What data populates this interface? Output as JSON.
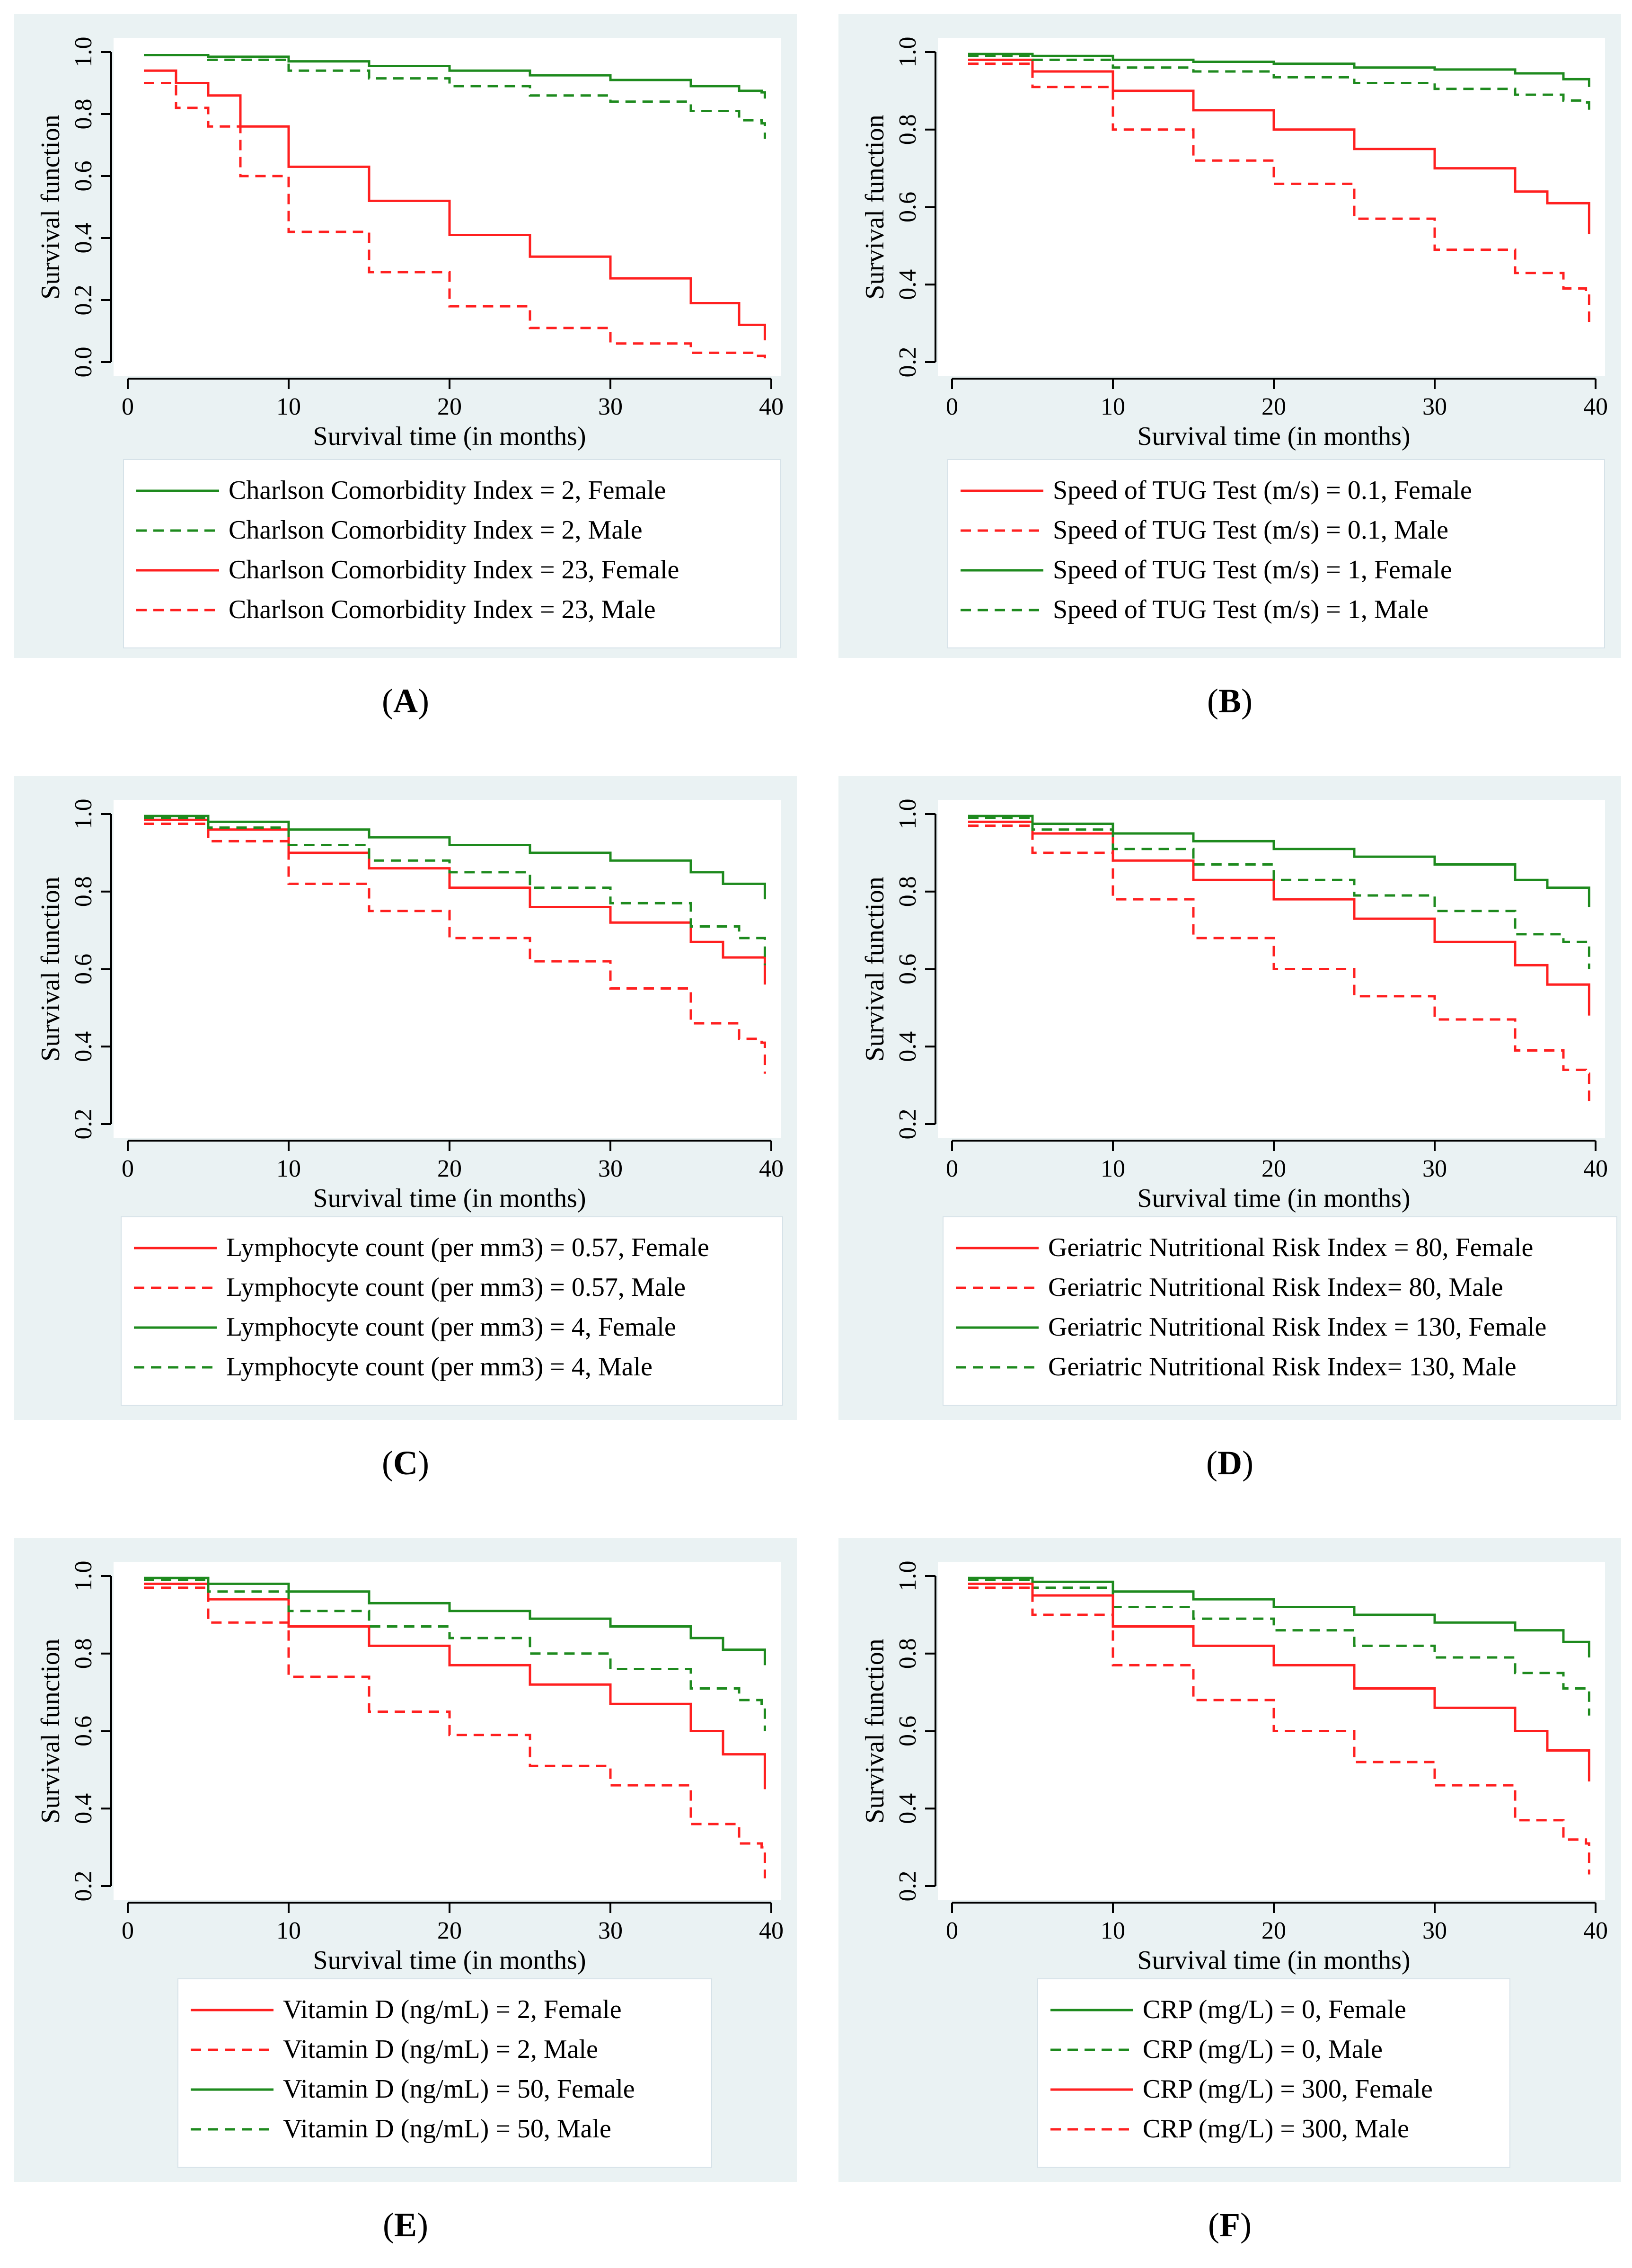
{
  "colors": {
    "panel_bg": "#eaf2f3",
    "green": "#1e8a1e",
    "red": "#ff2020",
    "axis": "#000000"
  },
  "chart_data": [
    {
      "id": "A",
      "type": "line",
      "panel_label": "A",
      "xlabel": "Survival time (in months)",
      "ylabel": "Survival function",
      "xlim": [
        0,
        40
      ],
      "ylim": [
        0.0,
        1.0
      ],
      "xticks": [
        "0",
        "10",
        "20",
        "30",
        "40"
      ],
      "yticks": [
        {
          "v": 0.0,
          "l": "0.0"
        },
        {
          "v": 0.2,
          "l": "0.2"
        },
        {
          "v": 0.4,
          "l": "0.4"
        },
        {
          "v": 0.6,
          "l": "0.6"
        },
        {
          "v": 0.8,
          "l": "0.8"
        },
        {
          "v": 1.0,
          "l": "1.0"
        }
      ],
      "series": [
        {
          "name": "Charlson Comorbidity Index = 2, Female",
          "color": "green",
          "dash": false,
          "x": [
            1,
            5,
            10,
            15,
            20,
            25,
            30,
            35,
            38,
            39.4,
            39.6
          ],
          "y": [
            0.99,
            0.985,
            0.97,
            0.955,
            0.94,
            0.925,
            0.91,
            0.89,
            0.875,
            0.87,
            0.85
          ]
        },
        {
          "name": "Charlson Comorbidity Index = 2, Male",
          "color": "green",
          "dash": true,
          "x": [
            1,
            5,
            10,
            15,
            20,
            25,
            30,
            35,
            38,
            39.4,
            39.6
          ],
          "y": [
            0.99,
            0.975,
            0.94,
            0.915,
            0.89,
            0.86,
            0.84,
            0.81,
            0.78,
            0.77,
            0.72
          ]
        },
        {
          "name": "Charlson Comorbidity Index = 23, Female",
          "color": "red",
          "dash": false,
          "x": [
            1,
            3,
            5,
            7,
            10,
            15,
            20,
            25,
            30,
            35,
            38,
            39.4,
            39.6
          ],
          "y": [
            0.94,
            0.9,
            0.86,
            0.76,
            0.63,
            0.52,
            0.41,
            0.34,
            0.27,
            0.19,
            0.12,
            0.12,
            0.07
          ]
        },
        {
          "name": "Charlson Comorbidity Index = 23, Male",
          "color": "red",
          "dash": true,
          "x": [
            1,
            3,
            5,
            7,
            10,
            15,
            20,
            25,
            30,
            35,
            39,
            39.6
          ],
          "y": [
            0.9,
            0.82,
            0.76,
            0.6,
            0.42,
            0.29,
            0.18,
            0.11,
            0.06,
            0.03,
            0.02,
            0.01
          ]
        }
      ]
    },
    {
      "id": "B",
      "type": "line",
      "panel_label": "B",
      "xlabel": "Survival time (in months)",
      "ylabel": "Survival function",
      "xlim": [
        0,
        40
      ],
      "ylim": [
        0.2,
        1.0
      ],
      "xticks": [
        "0",
        "10",
        "20",
        "30",
        "40"
      ],
      "yticks": [
        {
          "v": 0.2,
          "l": "0.2"
        },
        {
          "v": 0.4,
          "l": "0.4"
        },
        {
          "v": 0.6,
          "l": "0.6"
        },
        {
          "v": 0.8,
          "l": "0.8"
        },
        {
          "v": 1.0,
          "l": "1.0"
        }
      ],
      "series": [
        {
          "name": "Speed of TUG Test (m/s) = 0.1, Female",
          "color": "red",
          "dash": false,
          "x": [
            1,
            5,
            10,
            15,
            20,
            25,
            30,
            35,
            37,
            39.4,
            39.6
          ],
          "y": [
            0.98,
            0.95,
            0.9,
            0.85,
            0.8,
            0.75,
            0.7,
            0.64,
            0.61,
            0.61,
            0.53
          ]
        },
        {
          "name": "Speed of TUG Test (m/s) = 0.1, Male",
          "color": "red",
          "dash": true,
          "x": [
            1,
            5,
            10,
            15,
            20,
            25,
            30,
            35,
            38,
            39.4,
            39.6
          ],
          "y": [
            0.97,
            0.91,
            0.8,
            0.72,
            0.66,
            0.57,
            0.49,
            0.43,
            0.39,
            0.38,
            0.3
          ]
        },
        {
          "name": "Speed of TUG Test (m/s) = 1, Female",
          "color": "green",
          "dash": false,
          "x": [
            1,
            5,
            10,
            15,
            20,
            25,
            30,
            35,
            38,
            39.4,
            39.6
          ],
          "y": [
            0.995,
            0.99,
            0.98,
            0.975,
            0.97,
            0.96,
            0.955,
            0.945,
            0.93,
            0.93,
            0.91
          ]
        },
        {
          "name": "Speed of TUG Test (m/s) = 1, Male",
          "color": "green",
          "dash": true,
          "x": [
            1,
            5,
            10,
            15,
            20,
            25,
            30,
            35,
            38,
            39.4,
            39.6
          ],
          "y": [
            0.99,
            0.98,
            0.96,
            0.95,
            0.935,
            0.92,
            0.905,
            0.89,
            0.875,
            0.87,
            0.84
          ]
        }
      ]
    },
    {
      "id": "C",
      "type": "line",
      "panel_label": "C",
      "xlabel": "Survival time (in months)",
      "ylabel": "Survival function",
      "xlim": [
        0,
        40
      ],
      "ylim": [
        0.2,
        1.0
      ],
      "xticks": [
        "0",
        "10",
        "20",
        "30",
        "40"
      ],
      "yticks": [
        {
          "v": 0.2,
          "l": "0.2"
        },
        {
          "v": 0.4,
          "l": "0.4"
        },
        {
          "v": 0.6,
          "l": "0.6"
        },
        {
          "v": 0.8,
          "l": "0.8"
        },
        {
          "v": 1.0,
          "l": "1.0"
        }
      ],
      "series": [
        {
          "name": "Lymphocyte count (per mm3) = 0.57, Female",
          "color": "red",
          "dash": false,
          "x": [
            1,
            5,
            10,
            15,
            20,
            25,
            30,
            35,
            37,
            39.4,
            39.6
          ],
          "y": [
            0.985,
            0.96,
            0.9,
            0.86,
            0.81,
            0.76,
            0.72,
            0.67,
            0.63,
            0.63,
            0.56
          ]
        },
        {
          "name": "Lymphocyte count (per mm3) = 0.57, Male",
          "color": "red",
          "dash": true,
          "x": [
            1,
            5,
            10,
            15,
            20,
            25,
            30,
            35,
            38,
            39.4,
            39.6
          ],
          "y": [
            0.975,
            0.93,
            0.82,
            0.75,
            0.68,
            0.62,
            0.55,
            0.46,
            0.42,
            0.41,
            0.33
          ]
        },
        {
          "name": "Lymphocyte count (per mm3) = 4, Female",
          "color": "green",
          "dash": false,
          "x": [
            1,
            5,
            10,
            15,
            20,
            25,
            30,
            35,
            37,
            39.4,
            39.6
          ],
          "y": [
            0.995,
            0.98,
            0.96,
            0.94,
            0.92,
            0.9,
            0.88,
            0.85,
            0.82,
            0.82,
            0.78
          ]
        },
        {
          "name": "Lymphocyte count (per mm3) = 4, Male",
          "color": "green",
          "dash": true,
          "x": [
            1,
            5,
            10,
            15,
            20,
            25,
            30,
            35,
            38,
            39.4,
            39.6
          ],
          "y": [
            0.99,
            0.965,
            0.92,
            0.88,
            0.85,
            0.81,
            0.77,
            0.71,
            0.68,
            0.68,
            0.61
          ]
        }
      ]
    },
    {
      "id": "D",
      "type": "line",
      "panel_label": "D",
      "xlabel": "Survival time (in months)",
      "ylabel": "Survival function",
      "xlim": [
        0,
        40
      ],
      "ylim": [
        0.2,
        1.0
      ],
      "xticks": [
        "0",
        "10",
        "20",
        "30",
        "40"
      ],
      "yticks": [
        {
          "v": 0.2,
          "l": "0.2"
        },
        {
          "v": 0.4,
          "l": "0.4"
        },
        {
          "v": 0.6,
          "l": "0.6"
        },
        {
          "v": 0.8,
          "l": "0.8"
        },
        {
          "v": 1.0,
          "l": "1.0"
        }
      ],
      "series": [
        {
          "name": "Geriatric Nutritional Risk Index = 80, Female",
          "color": "red",
          "dash": false,
          "x": [
            1,
            5,
            10,
            15,
            20,
            25,
            30,
            35,
            37,
            39.4,
            39.6
          ],
          "y": [
            0.98,
            0.95,
            0.88,
            0.83,
            0.78,
            0.73,
            0.67,
            0.61,
            0.56,
            0.56,
            0.48
          ]
        },
        {
          "name": "Geriatric Nutritional Risk Index= 80, Male",
          "color": "red",
          "dash": true,
          "x": [
            1,
            5,
            10,
            15,
            20,
            25,
            30,
            35,
            38,
            39.4,
            39.6
          ],
          "y": [
            0.97,
            0.9,
            0.78,
            0.68,
            0.6,
            0.53,
            0.47,
            0.39,
            0.34,
            0.33,
            0.25
          ]
        },
        {
          "name": "Geriatric Nutritional Risk Index = 130, Female",
          "color": "green",
          "dash": false,
          "x": [
            1,
            5,
            10,
            15,
            20,
            25,
            30,
            35,
            37,
            39.4,
            39.6
          ],
          "y": [
            0.995,
            0.975,
            0.95,
            0.93,
            0.91,
            0.89,
            0.87,
            0.83,
            0.81,
            0.81,
            0.76
          ]
        },
        {
          "name": "Geriatric Nutritional Risk Index= 130, Male",
          "color": "green",
          "dash": true,
          "x": [
            1,
            5,
            10,
            15,
            20,
            25,
            30,
            35,
            38,
            39.4,
            39.6
          ],
          "y": [
            0.99,
            0.96,
            0.91,
            0.87,
            0.83,
            0.79,
            0.75,
            0.69,
            0.67,
            0.66,
            0.6
          ]
        }
      ]
    },
    {
      "id": "E",
      "type": "line",
      "panel_label": "E",
      "xlabel": "Survival time (in months)",
      "ylabel": "Survival function",
      "xlim": [
        0,
        40
      ],
      "ylim": [
        0.2,
        1.0
      ],
      "xticks": [
        "0",
        "10",
        "20",
        "30",
        "40"
      ],
      "yticks": [
        {
          "v": 0.2,
          "l": "0.2"
        },
        {
          "v": 0.4,
          "l": "0.4"
        },
        {
          "v": 0.6,
          "l": "0.6"
        },
        {
          "v": 0.8,
          "l": "0.8"
        },
        {
          "v": 1.0,
          "l": "1.0"
        }
      ],
      "series": [
        {
          "name": "Vitamin D (ng/mL) = 2, Female",
          "color": "red",
          "dash": false,
          "x": [
            1,
            5,
            10,
            15,
            20,
            25,
            30,
            35,
            37,
            39.4,
            39.6
          ],
          "y": [
            0.98,
            0.94,
            0.87,
            0.82,
            0.77,
            0.72,
            0.67,
            0.6,
            0.54,
            0.54,
            0.45
          ]
        },
        {
          "name": "Vitamin D (ng/mL) = 2, Male",
          "color": "red",
          "dash": true,
          "x": [
            1,
            5,
            10,
            15,
            20,
            25,
            30,
            35,
            38,
            39.4,
            39.6
          ],
          "y": [
            0.97,
            0.88,
            0.74,
            0.65,
            0.59,
            0.51,
            0.46,
            0.36,
            0.31,
            0.3,
            0.22
          ]
        },
        {
          "name": "Vitamin D (ng/mL) = 50, Female",
          "color": "green",
          "dash": false,
          "x": [
            1,
            5,
            10,
            15,
            20,
            25,
            30,
            35,
            37,
            39.4,
            39.6
          ],
          "y": [
            0.995,
            0.98,
            0.96,
            0.93,
            0.91,
            0.89,
            0.87,
            0.84,
            0.81,
            0.81,
            0.77
          ]
        },
        {
          "name": "Vitamin D (ng/mL) = 50, Male",
          "color": "green",
          "dash": true,
          "x": [
            1,
            5,
            10,
            15,
            20,
            25,
            30,
            35,
            38,
            39.4,
            39.6
          ],
          "y": [
            0.99,
            0.96,
            0.91,
            0.87,
            0.84,
            0.8,
            0.76,
            0.71,
            0.68,
            0.67,
            0.6
          ]
        }
      ]
    },
    {
      "id": "F",
      "type": "line",
      "panel_label": "F",
      "xlabel": "Survival time (in months)",
      "ylabel": "Survival function",
      "xlim": [
        0,
        40
      ],
      "ylim": [
        0.2,
        1.0
      ],
      "xticks": [
        "0",
        "10",
        "20",
        "30",
        "40"
      ],
      "yticks": [
        {
          "v": 0.2,
          "l": "0.2"
        },
        {
          "v": 0.4,
          "l": "0.4"
        },
        {
          "v": 0.6,
          "l": "0.6"
        },
        {
          "v": 0.8,
          "l": "0.8"
        },
        {
          "v": 1.0,
          "l": "1.0"
        }
      ],
      "series": [
        {
          "name": "CRP (mg/L) = 0, Female",
          "color": "green",
          "dash": false,
          "x": [
            1,
            5,
            10,
            15,
            20,
            25,
            30,
            35,
            38,
            39.4,
            39.6
          ],
          "y": [
            0.995,
            0.985,
            0.96,
            0.94,
            0.92,
            0.9,
            0.88,
            0.86,
            0.83,
            0.83,
            0.79
          ]
        },
        {
          "name": "CRP (mg/L) = 0, Male",
          "color": "green",
          "dash": true,
          "x": [
            1,
            5,
            10,
            15,
            20,
            25,
            30,
            35,
            38,
            39.4,
            39.6
          ],
          "y": [
            0.99,
            0.97,
            0.92,
            0.89,
            0.86,
            0.82,
            0.79,
            0.75,
            0.71,
            0.71,
            0.64
          ]
        },
        {
          "name": "CRP (mg/L) = 300, Female",
          "color": "red",
          "dash": false,
          "x": [
            1,
            5,
            10,
            15,
            20,
            25,
            30,
            35,
            37,
            39.4,
            39.6
          ],
          "y": [
            0.98,
            0.95,
            0.87,
            0.82,
            0.77,
            0.71,
            0.66,
            0.6,
            0.55,
            0.55,
            0.47
          ]
        },
        {
          "name": "CRP (mg/L) = 300, Male",
          "color": "red",
          "dash": true,
          "x": [
            1,
            5,
            10,
            15,
            20,
            25,
            30,
            35,
            38,
            39.4,
            39.6
          ],
          "y": [
            0.97,
            0.9,
            0.77,
            0.68,
            0.6,
            0.52,
            0.46,
            0.37,
            0.32,
            0.31,
            0.23
          ]
        }
      ]
    }
  ]
}
